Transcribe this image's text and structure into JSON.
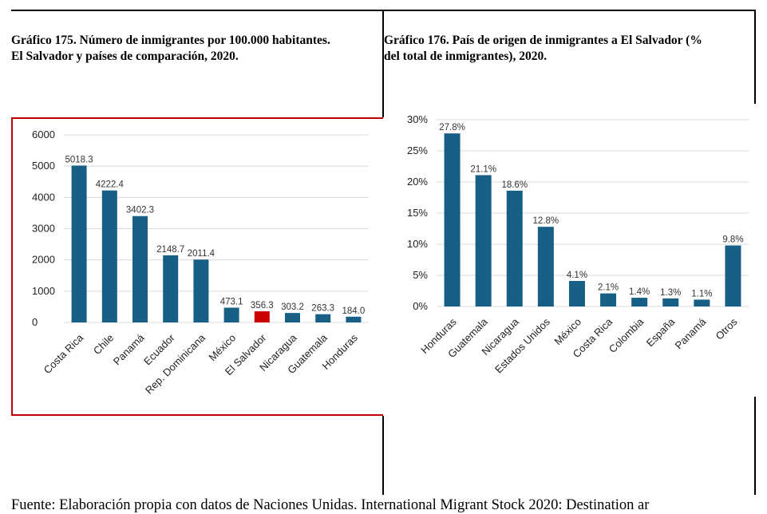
{
  "left_title_line1": "Gráfico 175. Número de inmigrantes por 100.000 habitantes.",
  "left_title_line2": "El Salvador y países de comparación, 2020.",
  "right_title_line1": "Gráfico 176. País de origen de inmigrantes a El Salvador (%",
  "right_title_line2": "del total de inmigrantes), 2020.",
  "source_text": "Fuente: Elaboración propia con datos de Naciones Unidas. International Migrant Stock 2020: Destination ar",
  "colors": {
    "bar": "#175f85",
    "highlight": "#cc0000",
    "frame": "#c00000",
    "grid": "#d9d9d9"
  },
  "chart_data": [
    {
      "type": "bar",
      "title": "Gráfico 175. Número de inmigrantes por 100.000 habitantes. El Salvador y países de comparación, 2020.",
      "categories": [
        "Costa Rica",
        "Chile",
        "Panamá",
        "Ecuador",
        "Rep. Dominicana",
        "México",
        "El Salvador",
        "Nicaragua",
        "Guatemala",
        "Honduras"
      ],
      "values": [
        5018.3,
        4222.4,
        3402.3,
        2148.7,
        2011.4,
        473.1,
        356.3,
        303.2,
        263.3,
        184.0
      ],
      "value_labels": [
        "5018.3",
        "4222.4",
        "3402.3",
        "2148.7",
        "2011.4",
        "473.1",
        "356.3",
        "303.2",
        "263.3",
        "184.0"
      ],
      "highlight_category": "El Salvador",
      "yticks": [
        "0",
        "1000",
        "2000",
        "3000",
        "4000",
        "5000",
        "6000"
      ],
      "ylim": [
        0,
        6000
      ],
      "xlabel": "",
      "ylabel": "",
      "grid": true
    },
    {
      "type": "bar",
      "title": "Gráfico 176. País de origen de inmigrantes a El Salvador (% del total de inmigrantes), 2020.",
      "categories": [
        "Honduras",
        "Guatemala",
        "Nicaragua",
        "Estados Unidos",
        "México",
        "Costa Rica",
        "Colombia",
        "España",
        "Panamá",
        "Otros"
      ],
      "values": [
        27.8,
        21.1,
        18.6,
        12.8,
        4.1,
        2.1,
        1.4,
        1.3,
        1.1,
        9.8
      ],
      "value_labels": [
        "27.8%",
        "21.1%",
        "18.6%",
        "12.8%",
        "4.1%",
        "2.1%",
        "1.4%",
        "1.3%",
        "1.1%",
        "9.8%"
      ],
      "yticks": [
        "0%",
        "5%",
        "10%",
        "15%",
        "20%",
        "25%",
        "30%"
      ],
      "ylim": [
        0,
        30
      ],
      "xlabel": "",
      "ylabel": "",
      "grid": true
    }
  ]
}
